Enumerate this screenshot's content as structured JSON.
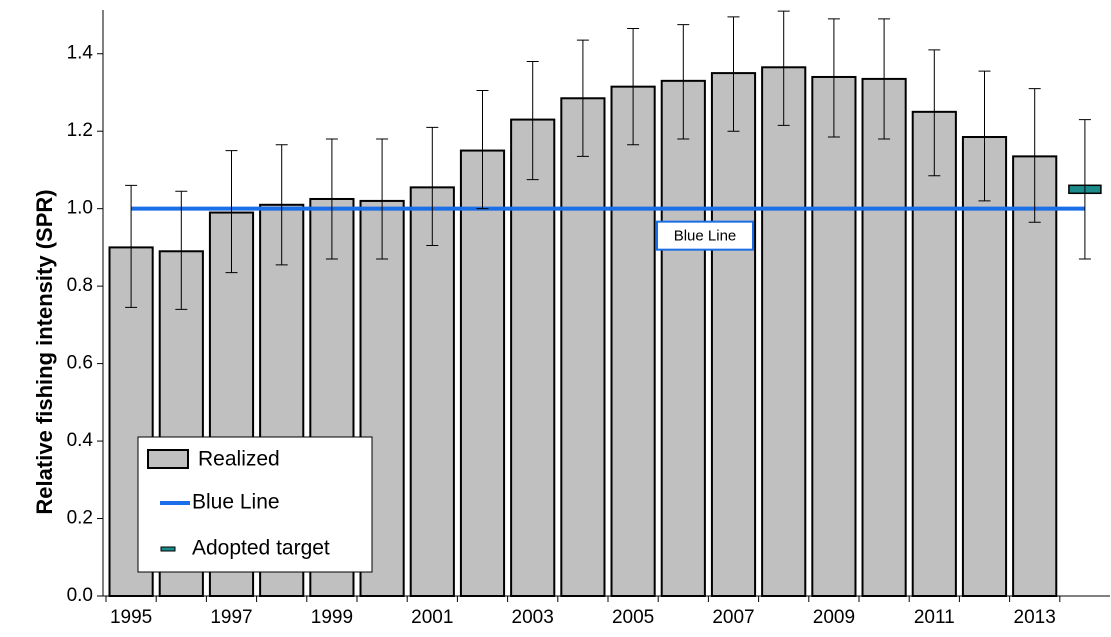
{
  "chart_data": {
    "type": "bar",
    "ylabel": "Relative fishing intensity (SPR)",
    "categories": [
      "1995",
      null,
      "1997",
      null,
      "1999",
      null,
      "2001",
      null,
      "2003",
      null,
      "2005",
      null,
      "2007",
      null,
      "2009",
      null,
      "2011",
      null,
      "2013",
      null
    ],
    "series": [
      {
        "name": "Realized",
        "color": "#c0c0c0",
        "values": [
          0.9,
          0.89,
          0.99,
          1.01,
          1.025,
          1.02,
          1.055,
          1.15,
          1.23,
          1.285,
          1.315,
          1.33,
          1.35,
          1.365,
          1.34,
          1.335,
          1.25,
          1.185,
          1.135,
          null
        ],
        "lower": [
          0.745,
          0.74,
          0.835,
          0.855,
          0.87,
          0.87,
          0.905,
          1.0,
          1.075,
          1.135,
          1.165,
          1.18,
          1.2,
          1.215,
          1.185,
          1.18,
          1.085,
          1.02,
          0.965,
          null
        ],
        "upper": [
          1.06,
          1.045,
          1.15,
          1.165,
          1.18,
          1.18,
          1.21,
          1.305,
          1.38,
          1.435,
          1.465,
          1.475,
          1.495,
          1.51,
          1.49,
          1.49,
          1.41,
          1.355,
          1.31,
          null
        ]
      },
      {
        "name": "Adopted target",
        "color": "#1a8a8a",
        "values": [
          null,
          null,
          null,
          null,
          null,
          null,
          null,
          null,
          null,
          null,
          null,
          null,
          null,
          null,
          null,
          null,
          null,
          null,
          null,
          1.05
        ],
        "lower": [
          null,
          null,
          null,
          null,
          null,
          null,
          null,
          null,
          null,
          null,
          null,
          null,
          null,
          null,
          null,
          null,
          null,
          null,
          null,
          0.87
        ],
        "upper": [
          null,
          null,
          null,
          null,
          null,
          null,
          null,
          null,
          null,
          null,
          null,
          null,
          null,
          null,
          null,
          null,
          null,
          null,
          null,
          1.23
        ]
      }
    ],
    "reference_lines": [
      {
        "name": "Blue Line",
        "value": 1.0,
        "color": "#1a6ee8"
      }
    ],
    "ylim": [
      0,
      1.5
    ],
    "yticks": [
      {
        "value": 0,
        "label": "0.0"
      },
      0.2,
      0.4,
      0.6,
      0.8,
      {
        "value": 1,
        "label": "1.0"
      },
      1.2,
      1.4
    ],
    "grid": false,
    "legend": "lower-left"
  }
}
